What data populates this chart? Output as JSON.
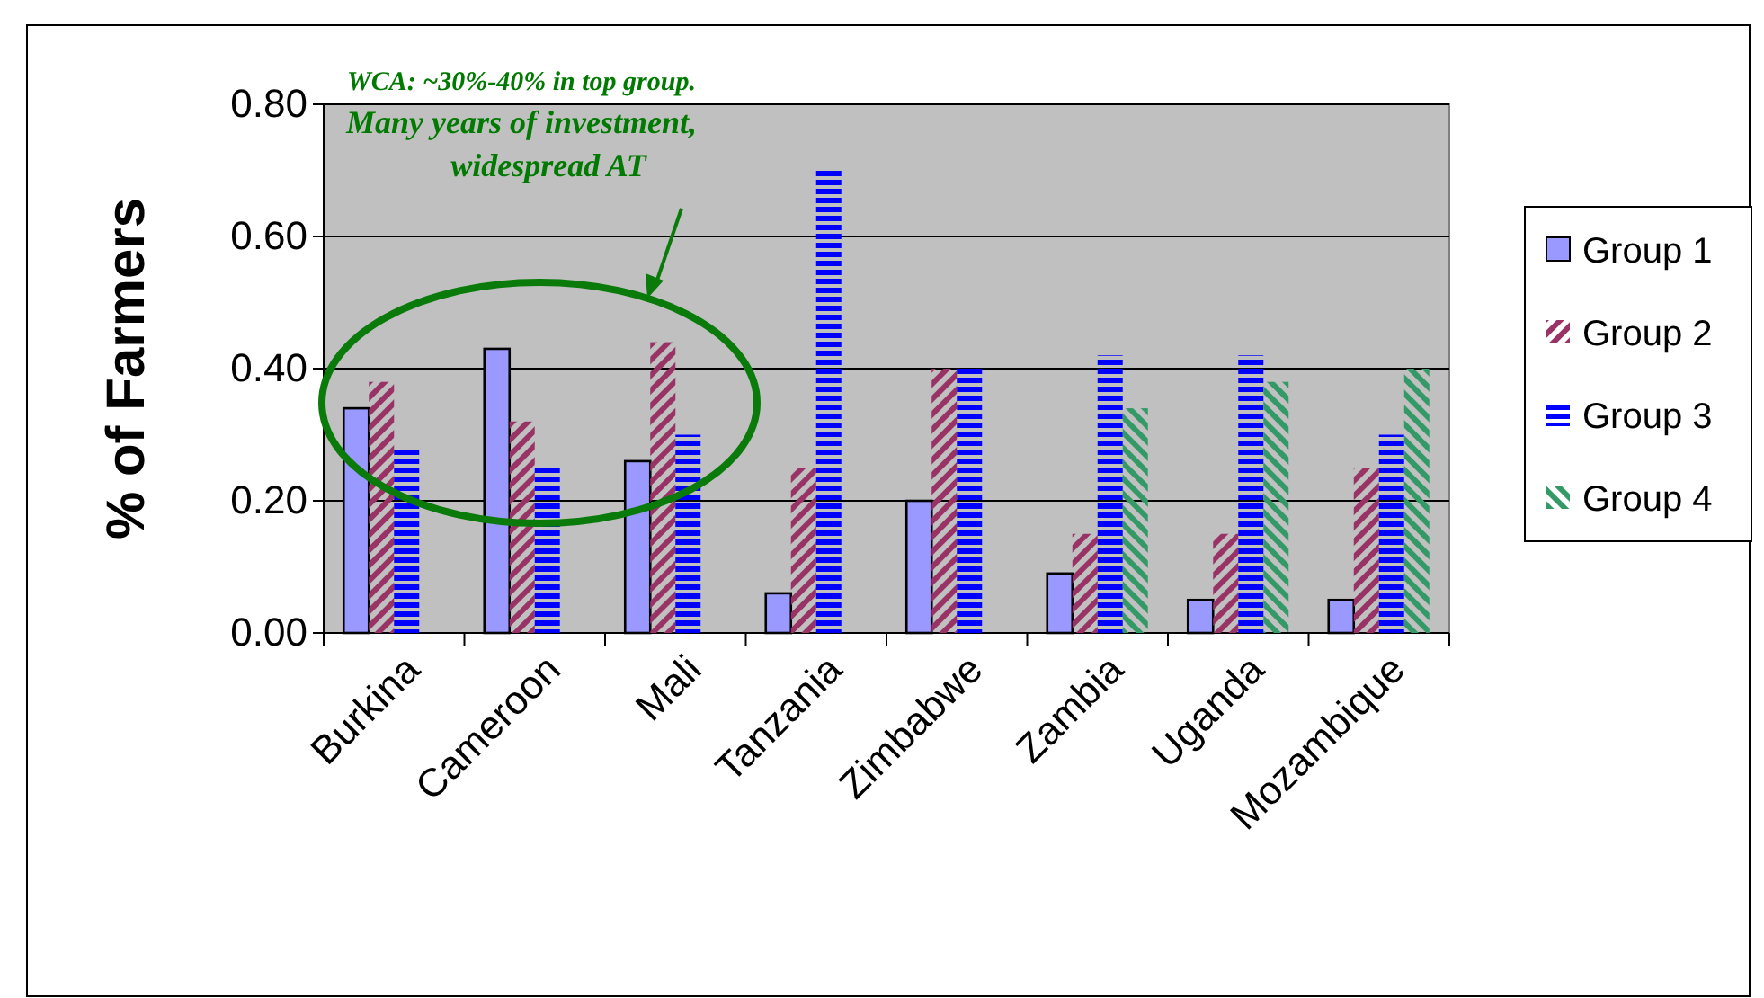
{
  "chart_data": {
    "type": "bar",
    "ylabel": "% of Farmers",
    "categories": [
      "Burkina",
      "Cameroon",
      "Mali",
      "Tanzania",
      "Zimbabwe",
      "Zambia",
      "Uganda",
      "Mozambique"
    ],
    "series": [
      {
        "name": "Group 1",
        "color": "#9999ff",
        "values": [
          0.34,
          0.43,
          0.26,
          0.06,
          0.2,
          0.09,
          0.05,
          0.05
        ]
      },
      {
        "name": "Group 2",
        "color": "#993366",
        "values": [
          0.38,
          0.32,
          0.44,
          0.25,
          0.4,
          0.15,
          0.15,
          0.25
        ]
      },
      {
        "name": "Group 3",
        "color": "#0000ff",
        "values": [
          0.28,
          0.25,
          0.3,
          0.7,
          0.4,
          0.42,
          0.42,
          0.3
        ]
      },
      {
        "name": "Group 4",
        "color": "#339966",
        "values": [
          null,
          null,
          null,
          null,
          null,
          0.34,
          0.38,
          0.4
        ]
      }
    ],
    "ylim": [
      0,
      0.8
    ],
    "yticks": [
      {
        "value": 0,
        "label": "0.00"
      },
      {
        "value": 0.2,
        "label": "0.20"
      },
      {
        "value": 0.4,
        "label": "0.40"
      },
      {
        "value": 0.6,
        "label": "0.60"
      },
      {
        "value": 0.8,
        "label": "0.80"
      }
    ],
    "grid": "y",
    "legend": "right",
    "annotations": [
      "WCA: ~30%-40% in top group.",
      "Many years of investment,",
      "widespread AT"
    ]
  }
}
